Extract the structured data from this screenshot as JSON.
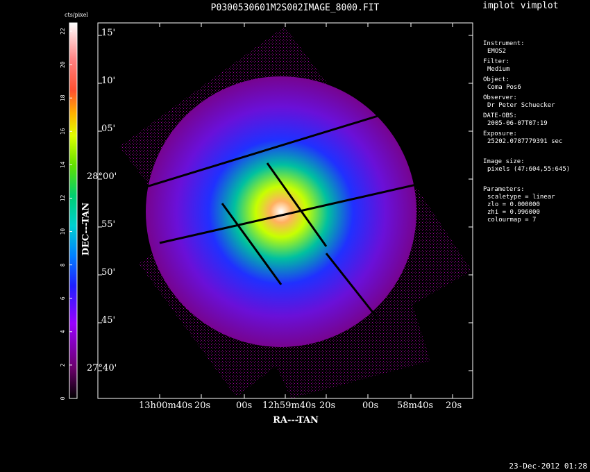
{
  "title": "P0300530601M2S002IMAGE_8000.FIT",
  "task_title": "implot vimplot",
  "timestamp": "23-Dec-2012 01:28",
  "colorbar": {
    "unit": "cts/pixel",
    "ticks": [
      "0",
      "2",
      "4",
      "6",
      "8",
      "10",
      "12",
      "14",
      "16",
      "18",
      "20",
      "22"
    ]
  },
  "axes": {
    "ylabel": "DEC---TAN",
    "xlabel": "RA---TAN",
    "yticks": [
      {
        "main": "",
        "label": "15'"
      },
      {
        "main": "",
        "label": "10'"
      },
      {
        "main": "",
        "label": "05'"
      },
      {
        "main": "28°00'",
        "label": ""
      },
      {
        "main": "",
        "label": "55'"
      },
      {
        "main": "",
        "label": "50'"
      },
      {
        "main": "",
        "label": "45'"
      },
      {
        "main": "27°40'",
        "label": ""
      }
    ],
    "xticks": [
      "13h00m40s",
      "20s",
      "00s",
      "12h59m40s",
      "20s",
      "00s",
      "58m40s",
      "20s"
    ]
  },
  "info": {
    "instrument_label": "Instrument:",
    "instrument": "EMOS2",
    "filter_label": "Filter:",
    "filter": "Medium",
    "object_label": "Object:",
    "object": "Coma Pos6",
    "observer_label": "Observer:",
    "observer": "Dr Peter Schuecker",
    "date_label": "DATE-OBS:",
    "date": "2005-06-07T07:19",
    "exposure_label": "Exposure:",
    "exposure": "25202.0787779391 sec",
    "imagesize_label": "Image size:",
    "imagesize": "pixels (47:604,55:645)",
    "params_label": "Parameters:",
    "scaletype": "scaletype = linear",
    "zlo": "zlo = 0.000000",
    "zhi": "zhi = 0.996000",
    "colourmap": "colourmap =   7"
  },
  "colors": {
    "background": "#000000",
    "foreground": "#ffffff"
  }
}
